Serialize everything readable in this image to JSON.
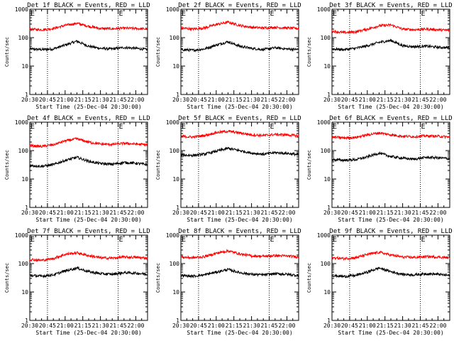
{
  "figure": {
    "x_tick_labels": [
      "20:30",
      "20:45",
      "21:00",
      "21:15",
      "21:30",
      "21:45",
      "22:00"
    ],
    "y_tick_labels": [
      "1",
      "10",
      "100",
      "1000"
    ],
    "marker_label": "E",
    "colors": {
      "events": "#000000",
      "lld": "#ff0000",
      "axes": "#000000",
      "background": "#ffffff"
    }
  },
  "chart_data": [
    {
      "type": "line",
      "title": "Det 1f BLACK = Events, RED = LLD",
      "xlabel": "Start Time (25-Dec-04 20:30:00)",
      "ylabel": "Counts/sec",
      "xlim": [
        "20:30",
        "22:10"
      ],
      "ylim": [
        1,
        1000
      ],
      "yscale": "log",
      "x": [
        "20:30",
        "20:40",
        "20:50",
        "21:00",
        "21:10",
        "21:20",
        "21:30",
        "21:40",
        "21:50",
        "22:00",
        "22:10"
      ],
      "series": [
        {
          "name": "BLACK = Events",
          "color": "#000000",
          "values": [
            40,
            38,
            40,
            55,
            75,
            50,
            42,
            40,
            45,
            42,
            38
          ]
        },
        {
          "name": "RED = LLD",
          "color": "#ff0000",
          "values": [
            200,
            190,
            210,
            270,
            320,
            250,
            210,
            205,
            215,
            210,
            200
          ]
        }
      ],
      "vlines": [
        "20:45",
        "21:45"
      ],
      "markers": [
        "20:30",
        "21:45"
      ]
    },
    {
      "type": "line",
      "title": "Det 2f BLACK = Events, RED = LLD",
      "xlabel": "Start Time (25-Dec-04 20:30:00)",
      "ylabel": "Counts/sec",
      "xlim": [
        "20:30",
        "22:10"
      ],
      "ylim": [
        1,
        1000
      ],
      "yscale": "log",
      "x": [
        "20:30",
        "20:40",
        "20:50",
        "21:00",
        "21:10",
        "21:20",
        "21:30",
        "21:40",
        "21:50",
        "22:00",
        "22:10"
      ],
      "series": [
        {
          "name": "BLACK = Events",
          "color": "#000000",
          "values": [
            38,
            36,
            40,
            55,
            72,
            50,
            42,
            38,
            44,
            40,
            38
          ]
        },
        {
          "name": "RED = LLD",
          "color": "#ff0000",
          "values": [
            220,
            200,
            220,
            290,
            350,
            270,
            230,
            220,
            230,
            220,
            210
          ]
        }
      ],
      "vlines": [
        "20:45",
        "21:45"
      ],
      "markers": [
        "20:30",
        "21:45"
      ]
    },
    {
      "type": "line",
      "title": "Det 3f BLACK = Events, RED = LLD",
      "xlabel": "Start Time (25-Dec-04 20:30:00)",
      "ylabel": "Counts/sec",
      "xlim": [
        "20:30",
        "22:10"
      ],
      "ylim": [
        1,
        1000
      ],
      "yscale": "log",
      "x": [
        "20:30",
        "20:40",
        "20:50",
        "21:00",
        "21:10",
        "21:20",
        "21:30",
        "21:40",
        "21:50",
        "22:00",
        "22:10"
      ],
      "series": [
        {
          "name": "BLACK = Events",
          "color": "#000000",
          "values": [
            40,
            38,
            42,
            52,
            68,
            80,
            52,
            48,
            50,
            46,
            44
          ]
        },
        {
          "name": "RED = LLD",
          "color": "#ff0000",
          "values": [
            170,
            150,
            160,
            200,
            260,
            280,
            200,
            190,
            200,
            190,
            180
          ]
        }
      ],
      "vlines": [
        "20:45",
        "21:45"
      ],
      "markers": [
        "20:30",
        "21:45"
      ]
    },
    {
      "type": "line",
      "title": "Det 4f BLACK = Events, RED = LLD",
      "xlabel": "Start Time (25-Dec-04 20:30:00)",
      "ylabel": "Counts/sec",
      "xlim": [
        "20:30",
        "22:10"
      ],
      "ylim": [
        1,
        1000
      ],
      "yscale": "log",
      "x": [
        "20:30",
        "20:40",
        "20:50",
        "21:00",
        "21:10",
        "21:20",
        "21:30",
        "21:40",
        "21:50",
        "22:00",
        "22:10"
      ],
      "series": [
        {
          "name": "BLACK = Events",
          "color": "#000000",
          "values": [
            30,
            28,
            32,
            45,
            58,
            42,
            35,
            33,
            38,
            36,
            32
          ]
        },
        {
          "name": "RED = LLD",
          "color": "#ff0000",
          "values": [
            150,
            140,
            160,
            220,
            260,
            200,
            170,
            165,
            180,
            170,
            160
          ]
        }
      ],
      "vlines": [
        "20:45",
        "21:45"
      ],
      "markers": [
        "20:30",
        "21:45"
      ]
    },
    {
      "type": "line",
      "title": "Det 5f BLACK = Events, RED = LLD",
      "xlabel": "Start Time (25-Dec-04 20:30:00)",
      "ylabel": "Counts/sec",
      "xlim": [
        "20:30",
        "22:10"
      ],
      "ylim": [
        1,
        1000
      ],
      "yscale": "log",
      "x": [
        "20:30",
        "20:40",
        "20:50",
        "21:00",
        "21:10",
        "21:20",
        "21:30",
        "21:40",
        "21:50",
        "22:00",
        "22:10"
      ],
      "series": [
        {
          "name": "BLACK = Events",
          "color": "#000000",
          "values": [
            70,
            68,
            75,
            95,
            120,
            100,
            82,
            75,
            85,
            80,
            72
          ]
        },
        {
          "name": "RED = LLD",
          "color": "#ff0000",
          "values": [
            320,
            300,
            340,
            430,
            480,
            420,
            360,
            340,
            370,
            360,
            330
          ]
        }
      ],
      "vlines": [
        "20:45",
        "21:45"
      ],
      "markers": [
        "20:30",
        "21:45"
      ]
    },
    {
      "type": "line",
      "title": "Det 6f BLACK = Events, RED = LLD",
      "xlabel": "Start Time (25-Dec-04 20:30:00)",
      "ylabel": "Counts/sec",
      "xlim": [
        "20:30",
        "22:10"
      ],
      "ylim": [
        1,
        1000
      ],
      "yscale": "log",
      "x": [
        "20:30",
        "20:40",
        "20:50",
        "21:00",
        "21:10",
        "21:20",
        "21:30",
        "21:40",
        "21:50",
        "22:00",
        "22:10"
      ],
      "series": [
        {
          "name": "BLACK = Events",
          "color": "#000000",
          "values": [
            48,
            46,
            48,
            60,
            82,
            62,
            54,
            50,
            58,
            56,
            52
          ]
        },
        {
          "name": "RED = LLD",
          "color": "#ff0000",
          "values": [
            300,
            280,
            290,
            360,
            420,
            360,
            320,
            310,
            330,
            320,
            300
          ]
        }
      ],
      "vlines": [
        "20:45",
        "21:45"
      ],
      "markers": [
        "20:30",
        "21:45"
      ]
    },
    {
      "type": "line",
      "title": "Det 7f BLACK = Events, RED = LLD",
      "xlabel": "Start Time (25-Dec-04 20:30:00)",
      "ylabel": "Counts/sec",
      "xlim": [
        "20:30",
        "22:10"
      ],
      "ylim": [
        1,
        1000
      ],
      "yscale": "log",
      "x": [
        "20:30",
        "20:40",
        "20:50",
        "21:00",
        "21:10",
        "21:20",
        "21:30",
        "21:40",
        "21:50",
        "22:00",
        "22:10"
      ],
      "series": [
        {
          "name": "BLACK = Events",
          "color": "#000000",
          "values": [
            38,
            36,
            40,
            55,
            70,
            52,
            44,
            42,
            48,
            46,
            42
          ]
        },
        {
          "name": "RED = LLD",
          "color": "#ff0000",
          "values": [
            140,
            130,
            150,
            210,
            240,
            190,
            160,
            155,
            170,
            165,
            155
          ]
        }
      ],
      "vlines": [
        "20:45",
        "21:45"
      ],
      "markers": [
        "20:30",
        "21:45"
      ]
    },
    {
      "type": "line",
      "title": "Det 8f BLACK = Events, RED = LLD",
      "xlabel": "Start Time (25-Dec-04 20:30:00)",
      "ylabel": "Counts/sec",
      "xlim": [
        "20:30",
        "22:10"
      ],
      "ylim": [
        1,
        1000
      ],
      "yscale": "log",
      "x": [
        "20:30",
        "20:40",
        "20:50",
        "21:00",
        "21:10",
        "21:20",
        "21:30",
        "21:40",
        "21:50",
        "22:00",
        "22:10"
      ],
      "series": [
        {
          "name": "BLACK = Events",
          "color": "#000000",
          "values": [
            38,
            36,
            40,
            50,
            62,
            48,
            42,
            40,
            44,
            42,
            38
          ]
        },
        {
          "name": "RED = LLD",
          "color": "#ff0000",
          "values": [
            170,
            160,
            175,
            230,
            280,
            220,
            185,
            180,
            190,
            185,
            170
          ]
        }
      ],
      "vlines": [
        "20:45",
        "21:45"
      ],
      "markers": [
        "20:30",
        "21:45"
      ]
    },
    {
      "type": "line",
      "title": "Det 9f BLACK = Events, RED = LLD",
      "xlabel": "Start Time (25-Dec-04 20:30:00)",
      "ylabel": "Counts/sec",
      "xlim": [
        "20:30",
        "22:10"
      ],
      "ylim": [
        1,
        1000
      ],
      "yscale": "log",
      "x": [
        "20:30",
        "20:40",
        "20:50",
        "21:00",
        "21:10",
        "21:20",
        "21:30",
        "21:40",
        "21:50",
        "22:00",
        "22:10"
      ],
      "series": [
        {
          "name": "BLACK = Events",
          "color": "#000000",
          "values": [
            38,
            35,
            38,
            50,
            70,
            52,
            42,
            40,
            44,
            42,
            38
          ]
        },
        {
          "name": "RED = LLD",
          "color": "#ff0000",
          "values": [
            160,
            150,
            160,
            210,
            250,
            200,
            170,
            165,
            175,
            170,
            160
          ]
        }
      ],
      "vlines": [
        "20:45",
        "21:45"
      ],
      "markers": [
        "20:30",
        "21:45"
      ]
    }
  ]
}
